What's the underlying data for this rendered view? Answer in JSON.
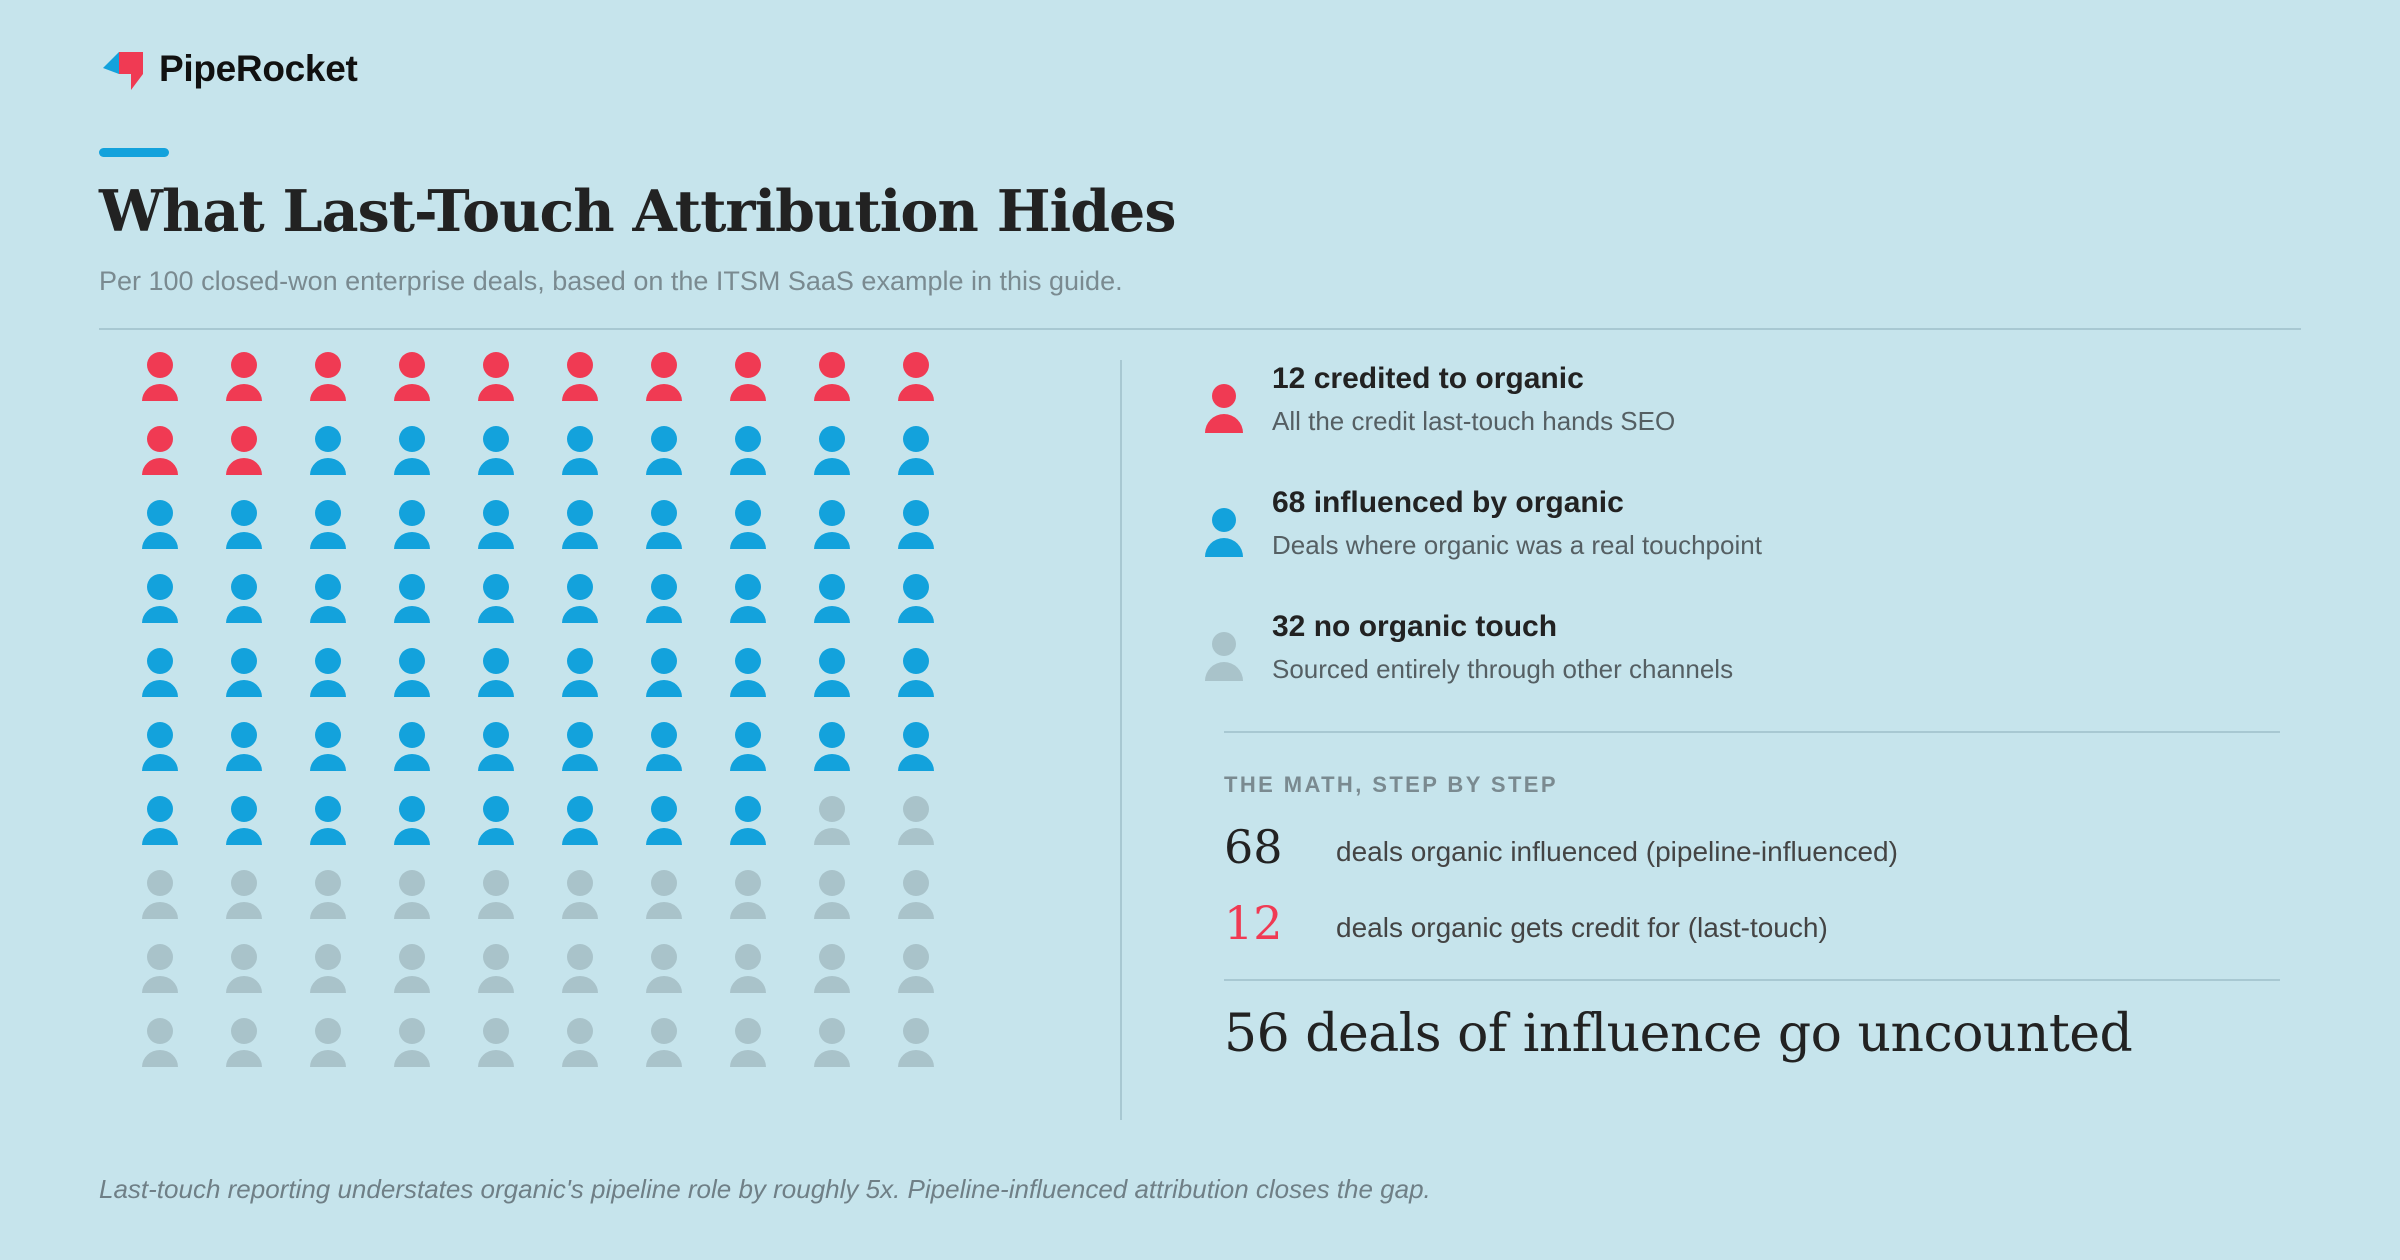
{
  "brand": {
    "name": "PipeRocket"
  },
  "header": {
    "title": "What Last-Touch Attribution Hides",
    "subtitle": "Per 100 closed-won enterprise deals, based on the ITSM SaaS example in this guide."
  },
  "chart_data": {
    "type": "waffle",
    "total": 100,
    "grid": {
      "rows": 10,
      "cols": 10
    },
    "unit": "deal",
    "series": [
      {
        "name": "12 credited to organic",
        "value": 12,
        "color": "#f03a53"
      },
      {
        "name": "68 influenced by organic",
        "value": 68,
        "color": "#13a2dc"
      },
      {
        "name": "32 no organic touch",
        "value": 32,
        "color": "#a9c3ca"
      }
    ]
  },
  "legend": [
    {
      "title": "12 credited to organic",
      "desc": "All the credit last-touch hands SEO",
      "color": "#f03a53"
    },
    {
      "title": "68 influenced by organic",
      "desc": "Deals where organic was a real touchpoint",
      "color": "#13a2dc"
    },
    {
      "title": "32 no organic touch",
      "desc": "Sourced entirely through other channels",
      "color": "#a9c3ca"
    }
  ],
  "math": {
    "heading": "THE MATH, STEP BY STEP",
    "rows": [
      {
        "num": "68",
        "label": "deals organic influenced (pipeline-influenced)"
      },
      {
        "num": "12",
        "label": "deals organic gets credit for (last-touch)"
      }
    ],
    "conclusion": "56 deals of influence go uncounted"
  },
  "footnote": "Last-touch reporting understates organic's pipeline role by roughly 5x. Pipeline-influenced attribution closes the gap.",
  "colors": {
    "background": "#c6e4ec",
    "credited": "#f03a53",
    "influenced": "#13a2dc",
    "none": "#a9c3ca",
    "accent": "#13a2dc"
  }
}
